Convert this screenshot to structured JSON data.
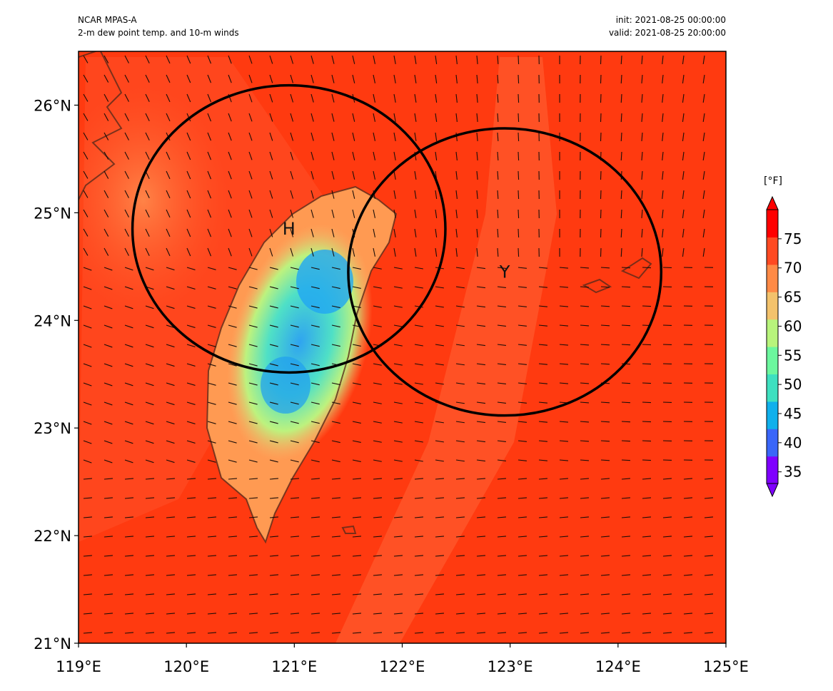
{
  "header": {
    "model": "NCAR MPAS-A",
    "product": "2-m dew point temp. and 10-m winds",
    "init": "init: 2021-08-25 00:00:00",
    "valid": "valid: 2021-08-25 20:00:00"
  },
  "map": {
    "lon_range": [
      119,
      125
    ],
    "lat_range": [
      21,
      26.5
    ],
    "x_ticks": [
      "119°E",
      "120°E",
      "121°E",
      "122°E",
      "123°E",
      "124°E",
      "125°E"
    ],
    "y_ticks": [
      "21°N",
      "22°N",
      "23°N",
      "24°N",
      "25°N",
      "26°N"
    ],
    "background_color": "#ff3a10",
    "circles": [
      {
        "label": "H",
        "center_lon": 120.95,
        "center_lat": 24.85
      },
      {
        "label": "Y",
        "center_lon": 122.95,
        "center_lat": 24.45
      }
    ]
  },
  "colorbar": {
    "unit": "[°F]",
    "ticks": [
      "35",
      "40",
      "45",
      "50",
      "55",
      "60",
      "65",
      "70",
      "75"
    ],
    "range": [
      33,
      80
    ],
    "colors": [
      "#7f00ff",
      "#3a66f9",
      "#10b0ec",
      "#3ee0c0",
      "#6cf79e",
      "#b8f47c",
      "#f3c26c",
      "#ff8a46",
      "#ff4a22",
      "#ff0000"
    ]
  }
}
